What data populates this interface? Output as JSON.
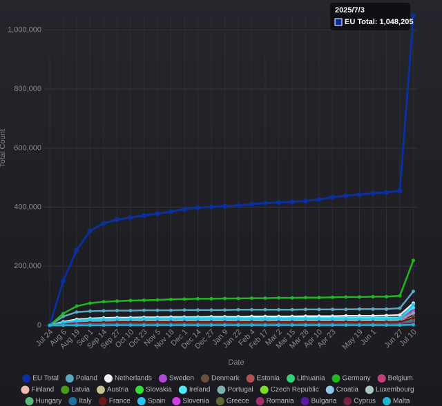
{
  "chart_data": {
    "type": "line",
    "x_label": "Date",
    "y_label": "Total Count",
    "categories": [
      "Jul 24",
      "Aug 6",
      "Aug 19",
      "Sep 1",
      "Sep 14",
      "Sep 27",
      "Oct 10",
      "Oct 23",
      "Nov 5",
      "Nov 18",
      "Dec 1",
      "Dec 14",
      "Dec 27",
      "Jan 9",
      "Jan 22",
      "Feb 4",
      "Feb 17",
      "Mar 2",
      "Mar 15",
      "Mar 28",
      "Apr 10",
      "Apr 23",
      null,
      "May 19",
      "Jun 1",
      null,
      "Jun 27",
      "Jul 10"
    ],
    "ylim": [
      0,
      1050000
    ],
    "yticks": [
      0,
      {
        "value": 200000,
        "label": "200,000"
      },
      {
        "value": 400000,
        "label": "400,000"
      },
      {
        "value": 600000,
        "label": "600,000"
      },
      {
        "value": 800000,
        "label": "800,000"
      },
      {
        "value": 1000000,
        "label": "1,000,000"
      }
    ],
    "grid": true,
    "legend": "bottom",
    "tooltip": {
      "title": "2025/7/3",
      "label": "EU Total: 1,048,205",
      "color": "#0a2f9e"
    },
    "series": [
      {
        "name": "EU Total",
        "color": "#0a2f9e",
        "values": [
          0,
          150000,
          255000,
          320000,
          345000,
          358000,
          365000,
          372000,
          378000,
          385000,
          393000,
          398000,
          401000,
          403000,
          406000,
          410000,
          414000,
          416000,
          418000,
          421000,
          426000,
          434000,
          439000,
          443000,
          447000,
          450000,
          455000,
          1048205
        ]
      },
      {
        "name": "Poland",
        "color": "#5aa7c0",
        "values": [
          0,
          30000,
          45000,
          48000,
          49000,
          50000,
          50000,
          51000,
          51000,
          51000,
          52000,
          52000,
          52000,
          52000,
          53000,
          53000,
          53000,
          53000,
          53000,
          54000,
          54000,
          54000,
          54000,
          55000,
          55000,
          55000,
          58000,
          115000
        ]
      },
      {
        "name": "Netherlands",
        "color": "#f0f0f0",
        "values": [
          0,
          12000,
          20000,
          23000,
          25000,
          26000,
          26000,
          27000,
          27000,
          28000,
          28000,
          28000,
          29000,
          29000,
          29000,
          30000,
          30000,
          30000,
          30000,
          31000,
          31000,
          31000,
          32000,
          32000,
          32000,
          33000,
          35000,
          75000
        ]
      },
      {
        "name": "Sweden",
        "color": "#b04bd6",
        "values": [
          0,
          8000,
          14000,
          17000,
          18000,
          19000,
          19000,
          19000,
          20000,
          20000,
          20000,
          20000,
          20000,
          20000,
          20000,
          20000,
          21000,
          21000,
          21000,
          21000,
          21000,
          21000,
          21000,
          22000,
          22000,
          22000,
          23000,
          50000
        ]
      },
      {
        "name": "Denmark",
        "color": "#6b4f3d",
        "values": [
          0,
          3000,
          5000,
          6000,
          7000,
          7000,
          7000,
          7000,
          8000,
          8000,
          8000,
          8000,
          8000,
          8000,
          8000,
          8000,
          8000,
          8000,
          8000,
          8000,
          8000,
          8000,
          8000,
          8000,
          8000,
          8000,
          9000,
          20000
        ]
      },
      {
        "name": "Estonia",
        "color": "#b25151",
        "values": [
          0,
          1000,
          2000,
          2500,
          2700,
          3000,
          3000,
          3000,
          3000,
          3000,
          3000,
          3000,
          3000,
          3000,
          3000,
          3000,
          3000,
          3000,
          3000,
          3000,
          3000,
          3000,
          3000,
          3000,
          3000,
          3000,
          3200,
          6000
        ]
      },
      {
        "name": "Lithuania",
        "color": "#34d17a",
        "values": [
          0,
          2000,
          3500,
          4200,
          4500,
          5000,
          5000,
          5000,
          5000,
          5000,
          5000,
          5000,
          5000,
          5000,
          5000,
          5000,
          5000,
          5000,
          5000,
          5000,
          5000,
          5000,
          5000,
          5000,
          5000,
          5000,
          5300,
          10000
        ]
      },
      {
        "name": "Germany",
        "color": "#1fb81f",
        "values": [
          0,
          40000,
          65000,
          75000,
          80000,
          82000,
          84000,
          85000,
          86000,
          88000,
          89000,
          90000,
          90000,
          91000,
          91000,
          92000,
          92000,
          93000,
          93000,
          94000,
          94000,
          95000,
          96000,
          96000,
          97000,
          97000,
          100000,
          220000
        ]
      },
      {
        "name": "Belgium",
        "color": "#c4407a",
        "values": [
          0,
          6000,
          10000,
          12000,
          13000,
          14000,
          14000,
          14000,
          15000,
          15000,
          15000,
          15000,
          15000,
          15000,
          15000,
          15000,
          15000,
          15000,
          15000,
          15000,
          15000,
          15000,
          15000,
          15000,
          15000,
          15000,
          16000,
          40000
        ]
      },
      {
        "name": "Finland",
        "color": "#f0b8b0",
        "values": [
          0,
          4000,
          7000,
          8500,
          9000,
          10000,
          10000,
          10000,
          10000,
          10000,
          10000,
          10000,
          10000,
          10000,
          10000,
          10000,
          10000,
          10000,
          10000,
          10000,
          10000,
          10000,
          10000,
          10000,
          10000,
          10000,
          10500,
          25000
        ]
      },
      {
        "name": "Latvia",
        "color": "#4a9a1a",
        "values": [
          0,
          800,
          1400,
          1700,
          1800,
          2000,
          2000,
          2000,
          2000,
          2000,
          2000,
          2000,
          2000,
          2000,
          2000,
          2000,
          2000,
          2000,
          2000,
          2000,
          2000,
          2000,
          2000,
          2000,
          2000,
          2000,
          2100,
          4000
        ]
      },
      {
        "name": "Austria",
        "color": "#c8c090",
        "values": [
          0,
          5000,
          8000,
          10000,
          11000,
          12000,
          12000,
          12000,
          12000,
          12000,
          12000,
          12000,
          12000,
          12000,
          12000,
          12000,
          12000,
          12000,
          12000,
          12000,
          12000,
          12000,
          12000,
          12000,
          12000,
          12000,
          12600,
          28000
        ]
      },
      {
        "name": "Slovakia",
        "color": "#33dd33",
        "values": [
          0,
          1600,
          2800,
          3400,
          3600,
          4000,
          4000,
          4000,
          4000,
          4000,
          4000,
          4000,
          4000,
          4000,
          4000,
          4000,
          4000,
          4000,
          4000,
          4000,
          4000,
          4000,
          4000,
          4000,
          4000,
          4000,
          4200,
          9000
        ]
      },
      {
        "name": "Ireland",
        "color": "#4de8f0",
        "values": [
          0,
          10000,
          17000,
          21000,
          22000,
          23000,
          23000,
          24000,
          24000,
          24000,
          25000,
          25000,
          25000,
          25000,
          25000,
          25000,
          25000,
          25000,
          25000,
          25000,
          25000,
          25000,
          25000,
          25000,
          25000,
          25000,
          26000,
          60000
        ]
      },
      {
        "name": "Portugal",
        "color": "#7fb0b0",
        "values": [
          0,
          7000,
          12000,
          15000,
          16000,
          17000,
          17000,
          17000,
          18000,
          18000,
          18000,
          18000,
          18000,
          18000,
          18000,
          18000,
          18000,
          18000,
          18000,
          18000,
          18000,
          18000,
          18000,
          18000,
          18000,
          18000,
          19000,
          42000
        ]
      },
      {
        "name": "Czech Republic",
        "color": "#7adb2a",
        "values": [
          0,
          4000,
          7000,
          8500,
          9000,
          10000,
          10000,
          10000,
          10000,
          10000,
          10000,
          10000,
          10000,
          10000,
          10000,
          10000,
          10000,
          10000,
          10000,
          10000,
          10000,
          10000,
          10000,
          10000,
          10000,
          10000,
          10500,
          24000
        ]
      },
      {
        "name": "Croatia",
        "color": "#8ec8e0",
        "values": [
          0,
          2400,
          4200,
          5100,
          5400,
          6000,
          6000,
          6000,
          6000,
          6000,
          6000,
          6000,
          6000,
          6000,
          6000,
          6000,
          6000,
          6000,
          6000,
          6000,
          6000,
          6000,
          6000,
          6000,
          6000,
          6000,
          6300,
          14000
        ]
      },
      {
        "name": "Luxembourg",
        "color": "#a8c8c0",
        "values": [
          0,
          600,
          1000,
          1300,
          1400,
          1500,
          1500,
          1500,
          1500,
          1500,
          1500,
          1500,
          1500,
          1500,
          1500,
          1500,
          1500,
          1500,
          1500,
          1500,
          1500,
          1500,
          1500,
          1500,
          1500,
          1500,
          1600,
          3000
        ]
      },
      {
        "name": "Hungary",
        "color": "#58b878",
        "values": [
          0,
          2800,
          4900,
          6000,
          6300,
          7000,
          7000,
          7000,
          7000,
          7000,
          7000,
          7000,
          7000,
          7000,
          7000,
          7000,
          7000,
          7000,
          7000,
          7000,
          7000,
          7000,
          7000,
          7000,
          7000,
          7000,
          7400,
          16000
        ]
      },
      {
        "name": "Italy",
        "color": "#1f6f9f",
        "values": [
          0,
          3600,
          6300,
          7700,
          8100,
          9000,
          9000,
          9000,
          9000,
          9000,
          9000,
          9000,
          9000,
          9000,
          9000,
          9000,
          9000,
          9000,
          9000,
          9000,
          9000,
          9000,
          9000,
          9000,
          9000,
          9000,
          9500,
          21000
        ]
      },
      {
        "name": "France",
        "color": "#6a1a1a",
        "values": [
          0,
          4400,
          7700,
          9400,
          9900,
          11000,
          11000,
          11000,
          11000,
          11000,
          11000,
          11000,
          11000,
          11000,
          11000,
          11000,
          11000,
          11000,
          11000,
          11000,
          11000,
          11000,
          11000,
          11000,
          11000,
          11000,
          11600,
          26000
        ]
      },
      {
        "name": "Spain",
        "color": "#29c5f0",
        "values": [
          0,
          9000,
          15000,
          19000,
          20000,
          21000,
          21000,
          22000,
          22000,
          22000,
          22000,
          22000,
          22000,
          22000,
          22000,
          22000,
          22000,
          22000,
          22000,
          22000,
          22000,
          22000,
          22000,
          22000,
          22000,
          22000,
          24000,
          70000
        ]
      },
      {
        "name": "Slovenia",
        "color": "#d040e0",
        "values": [
          0,
          1200,
          2100,
          2500,
          2700,
          3000,
          3000,
          3000,
          3000,
          3000,
          3000,
          3000,
          3000,
          3000,
          3000,
          3000,
          3000,
          3000,
          3000,
          3000,
          3000,
          3000,
          3000,
          3000,
          3000,
          3000,
          3200,
          7000
        ]
      },
      {
        "name": "Greece",
        "color": "#5a6a30",
        "values": [
          0,
          2000,
          3500,
          4200,
          4500,
          5000,
          5000,
          5000,
          5000,
          5000,
          5000,
          5000,
          5000,
          5000,
          5000,
          5000,
          5000,
          5000,
          5000,
          5000,
          5000,
          5000,
          5000,
          5000,
          5000,
          5000,
          5300,
          12000
        ]
      },
      {
        "name": "Romania",
        "color": "#a0306a",
        "values": [
          0,
          1600,
          2800,
          3400,
          3600,
          4000,
          4000,
          4000,
          4000,
          4000,
          4000,
          4000,
          4000,
          4000,
          4000,
          4000,
          4000,
          4000,
          4000,
          4000,
          4000,
          4000,
          4000,
          4000,
          4000,
          4000,
          4200,
          9000
        ]
      },
      {
        "name": "Bulgaria",
        "color": "#5a1aa0",
        "values": [
          0,
          800,
          1400,
          1700,
          1800,
          2000,
          2000,
          2000,
          2000,
          2000,
          2000,
          2000,
          2000,
          2000,
          2000,
          2000,
          2000,
          2000,
          2000,
          2000,
          2000,
          2000,
          2000,
          2000,
          2000,
          2000,
          2100,
          5000
        ]
      },
      {
        "name": "Cyprus",
        "color": "#7a2040",
        "values": [
          0,
          400,
          700,
          850,
          900,
          1000,
          1000,
          1000,
          1000,
          1000,
          1000,
          1000,
          1000,
          1000,
          1000,
          1000,
          1000,
          1000,
          1000,
          1000,
          1000,
          1000,
          1000,
          1000,
          1000,
          1000,
          1050,
          2500
        ]
      },
      {
        "name": "Malta",
        "color": "#1ab8d0",
        "values": [
          0,
          300,
          550,
          680,
          720,
          800,
          800,
          800,
          800,
          800,
          800,
          800,
          800,
          800,
          800,
          800,
          800,
          800,
          800,
          800,
          800,
          800,
          800,
          800,
          800,
          800,
          850,
          2000
        ]
      }
    ]
  }
}
